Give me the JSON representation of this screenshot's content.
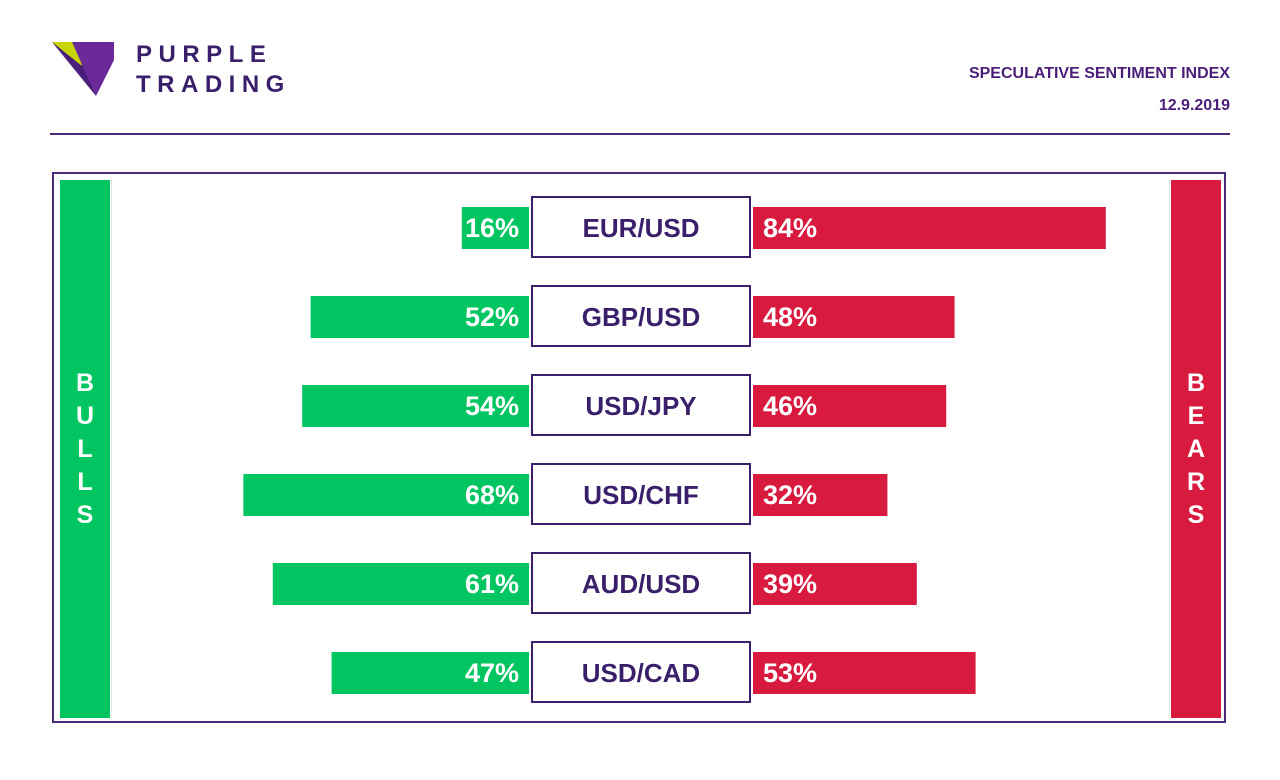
{
  "brand": {
    "name_line1": "PURPLE",
    "name_line2": "TRADING"
  },
  "header": {
    "title": "SPECULATIVE SENTIMENT INDEX",
    "date": "12.9.2019"
  },
  "left_label": "BULLS",
  "right_label": "BEARS",
  "colors": {
    "bulls": "#00c560",
    "bears": "#d81a3f",
    "accent": "#3a1f6b"
  },
  "chart_data": {
    "type": "bar",
    "categories": [
      "EUR/USD",
      "GBP/USD",
      "USD/JPY",
      "USD/CHF",
      "AUD/USD",
      "USD/CAD"
    ],
    "series": [
      {
        "values": [
          16,
          52,
          54,
          68,
          61,
          47
        ],
        "labels": [
          "16%",
          "52%",
          "54%",
          "68%",
          "61%",
          "47%"
        ]
      },
      {
        "values": [
          84,
          48,
          46,
          32,
          39,
          53
        ],
        "labels": [
          "84%",
          "48%",
          "46%",
          "32%",
          "39%",
          "53%"
        ]
      }
    ],
    "unit": "%"
  }
}
